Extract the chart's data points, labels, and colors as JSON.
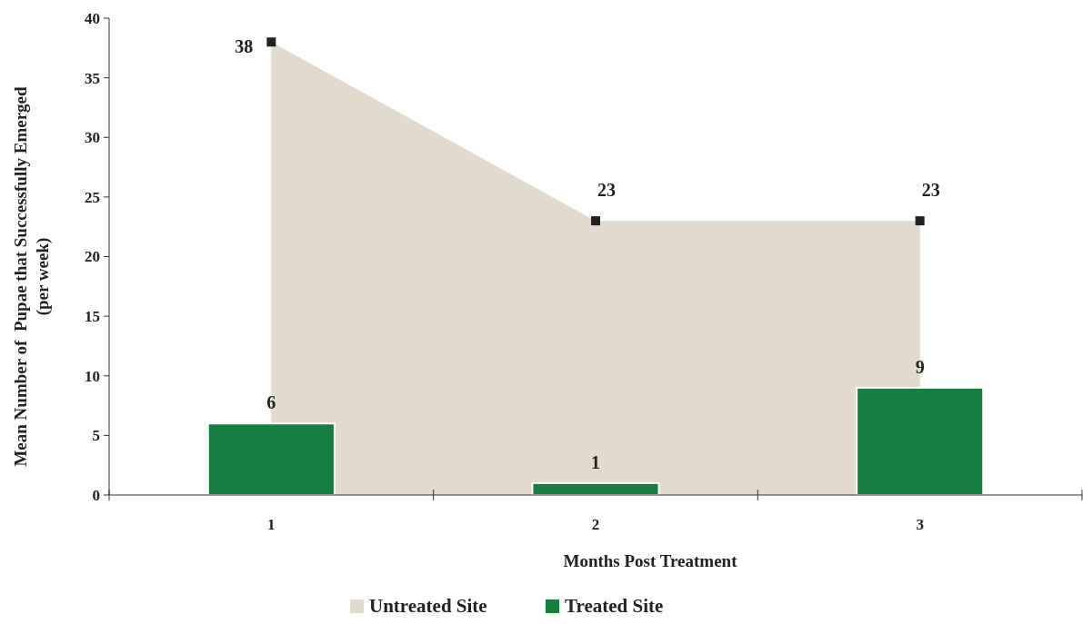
{
  "chart_data": {
    "type": "bar",
    "categories": [
      "1",
      "2",
      "3"
    ],
    "xlabel": "Months Post Treatment",
    "ylabel": "Mean Number of  Pupae that Successfully Emerged\n(per week)",
    "ylim": [
      0,
      40
    ],
    "yticks": [
      0,
      5,
      10,
      15,
      20,
      25,
      30,
      35,
      40
    ],
    "legend": "bottom",
    "data_labels": true,
    "series": [
      {
        "name": "Untreated Site",
        "type": "area",
        "color": "#e2dacd",
        "marker": "square",
        "values": [
          38,
          23,
          23
        ]
      },
      {
        "name": "Treated Site",
        "color": "#157f42",
        "values": [
          6,
          1,
          9
        ]
      }
    ]
  }
}
